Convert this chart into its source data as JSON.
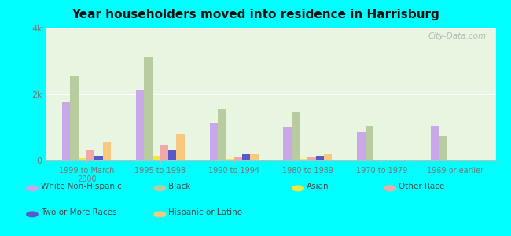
{
  "title": "Year householders moved into residence in Harrisburg",
  "categories": [
    "1999 to March\n2000",
    "1995 to 1998",
    "1990 to 1994",
    "1980 to 1989",
    "1970 to 1979",
    "1969 or earlier"
  ],
  "series": {
    "White Non-Hispanic": [
      1750,
      2150,
      1150,
      1000,
      850,
      1050
    ],
    "Black": [
      2550,
      3150,
      1550,
      1450,
      1050,
      750
    ],
    "Asian": [
      80,
      150,
      50,
      50,
      15,
      10
    ],
    "Other Race": [
      320,
      480,
      120,
      130,
      25,
      20
    ],
    "Two or More Races": [
      150,
      300,
      200,
      150,
      20,
      10
    ],
    "Hispanic or Latino": [
      550,
      800,
      200,
      200,
      20,
      10
    ]
  },
  "colors": {
    "White Non-Hispanic": "#c8a8e8",
    "Black": "#b8ccA0",
    "Asian": "#f0e840",
    "Other Race": "#f0a8a8",
    "Two or More Races": "#5858cc",
    "Hispanic or Latino": "#f8c880"
  },
  "bar_order": [
    "White Non-Hispanic",
    "Black",
    "Asian",
    "Other Race",
    "Two or More Races",
    "Hispanic or Latino"
  ],
  "ylim": [
    0,
    4000
  ],
  "yticks": [
    0,
    2000,
    4000
  ],
  "ytick_labels": [
    "0",
    "2k",
    "4k"
  ],
  "plot_bg": "#e8f5e0",
  "outer_bg": "#00ffff",
  "watermark": "City-Data.com",
  "legend_items": [
    [
      "White Non-Hispanic",
      "#c8a8e8"
    ],
    [
      "Two or More Races",
      "#5858cc"
    ],
    [
      "Black",
      "#b8ccA0"
    ],
    [
      "Hispanic or Latino",
      "#f8c880"
    ],
    [
      "Asian",
      "#f0e840"
    ],
    [
      "Other Race",
      "#f0a8a8"
    ]
  ]
}
